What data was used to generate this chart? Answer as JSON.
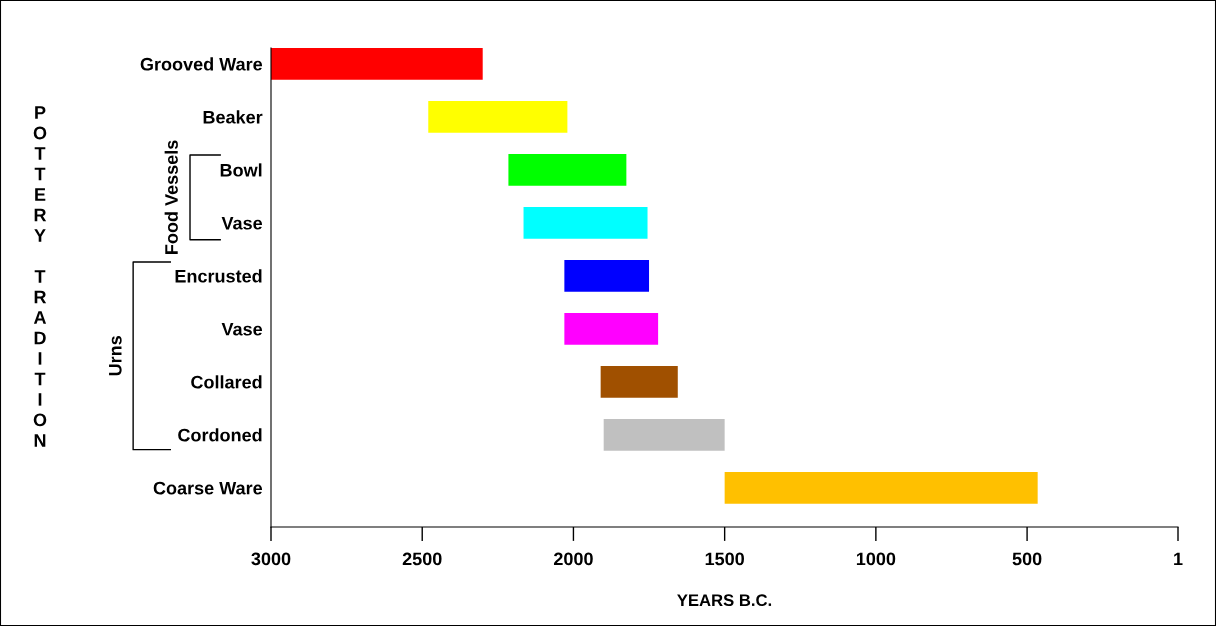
{
  "chart_data": {
    "type": "bar",
    "orientation": "horizontal",
    "xlabel": "YEARS B.C.",
    "ylabel": "POTTERY TRADITION",
    "categories": [
      "Grooved Ware",
      "Beaker",
      "Bowl",
      "Vase",
      "Encrusted",
      "Vase",
      "Collared",
      "Cordoned",
      "Coarse Ware"
    ],
    "base": [
      2300,
      2020,
      1825,
      1755,
      1750,
      1720,
      1655,
      1500,
      465
    ],
    "values": [
      700,
      460,
      390,
      410,
      280,
      310,
      255,
      400,
      1035
    ],
    "colors": [
      "#ff0000",
      "#ffff00",
      "#00ff00",
      "#00ffff",
      "#0000ff",
      "#ff00ff",
      "#a05000",
      "#c0c0c0",
      "#ffc000"
    ],
    "xlim": [
      3000,
      1
    ],
    "xticks": [
      3000,
      2500,
      2000,
      1500,
      1000,
      500,
      1
    ],
    "annotations": [
      "Food Vessels",
      "Urns"
    ],
    "grid": false,
    "legend": false
  }
}
